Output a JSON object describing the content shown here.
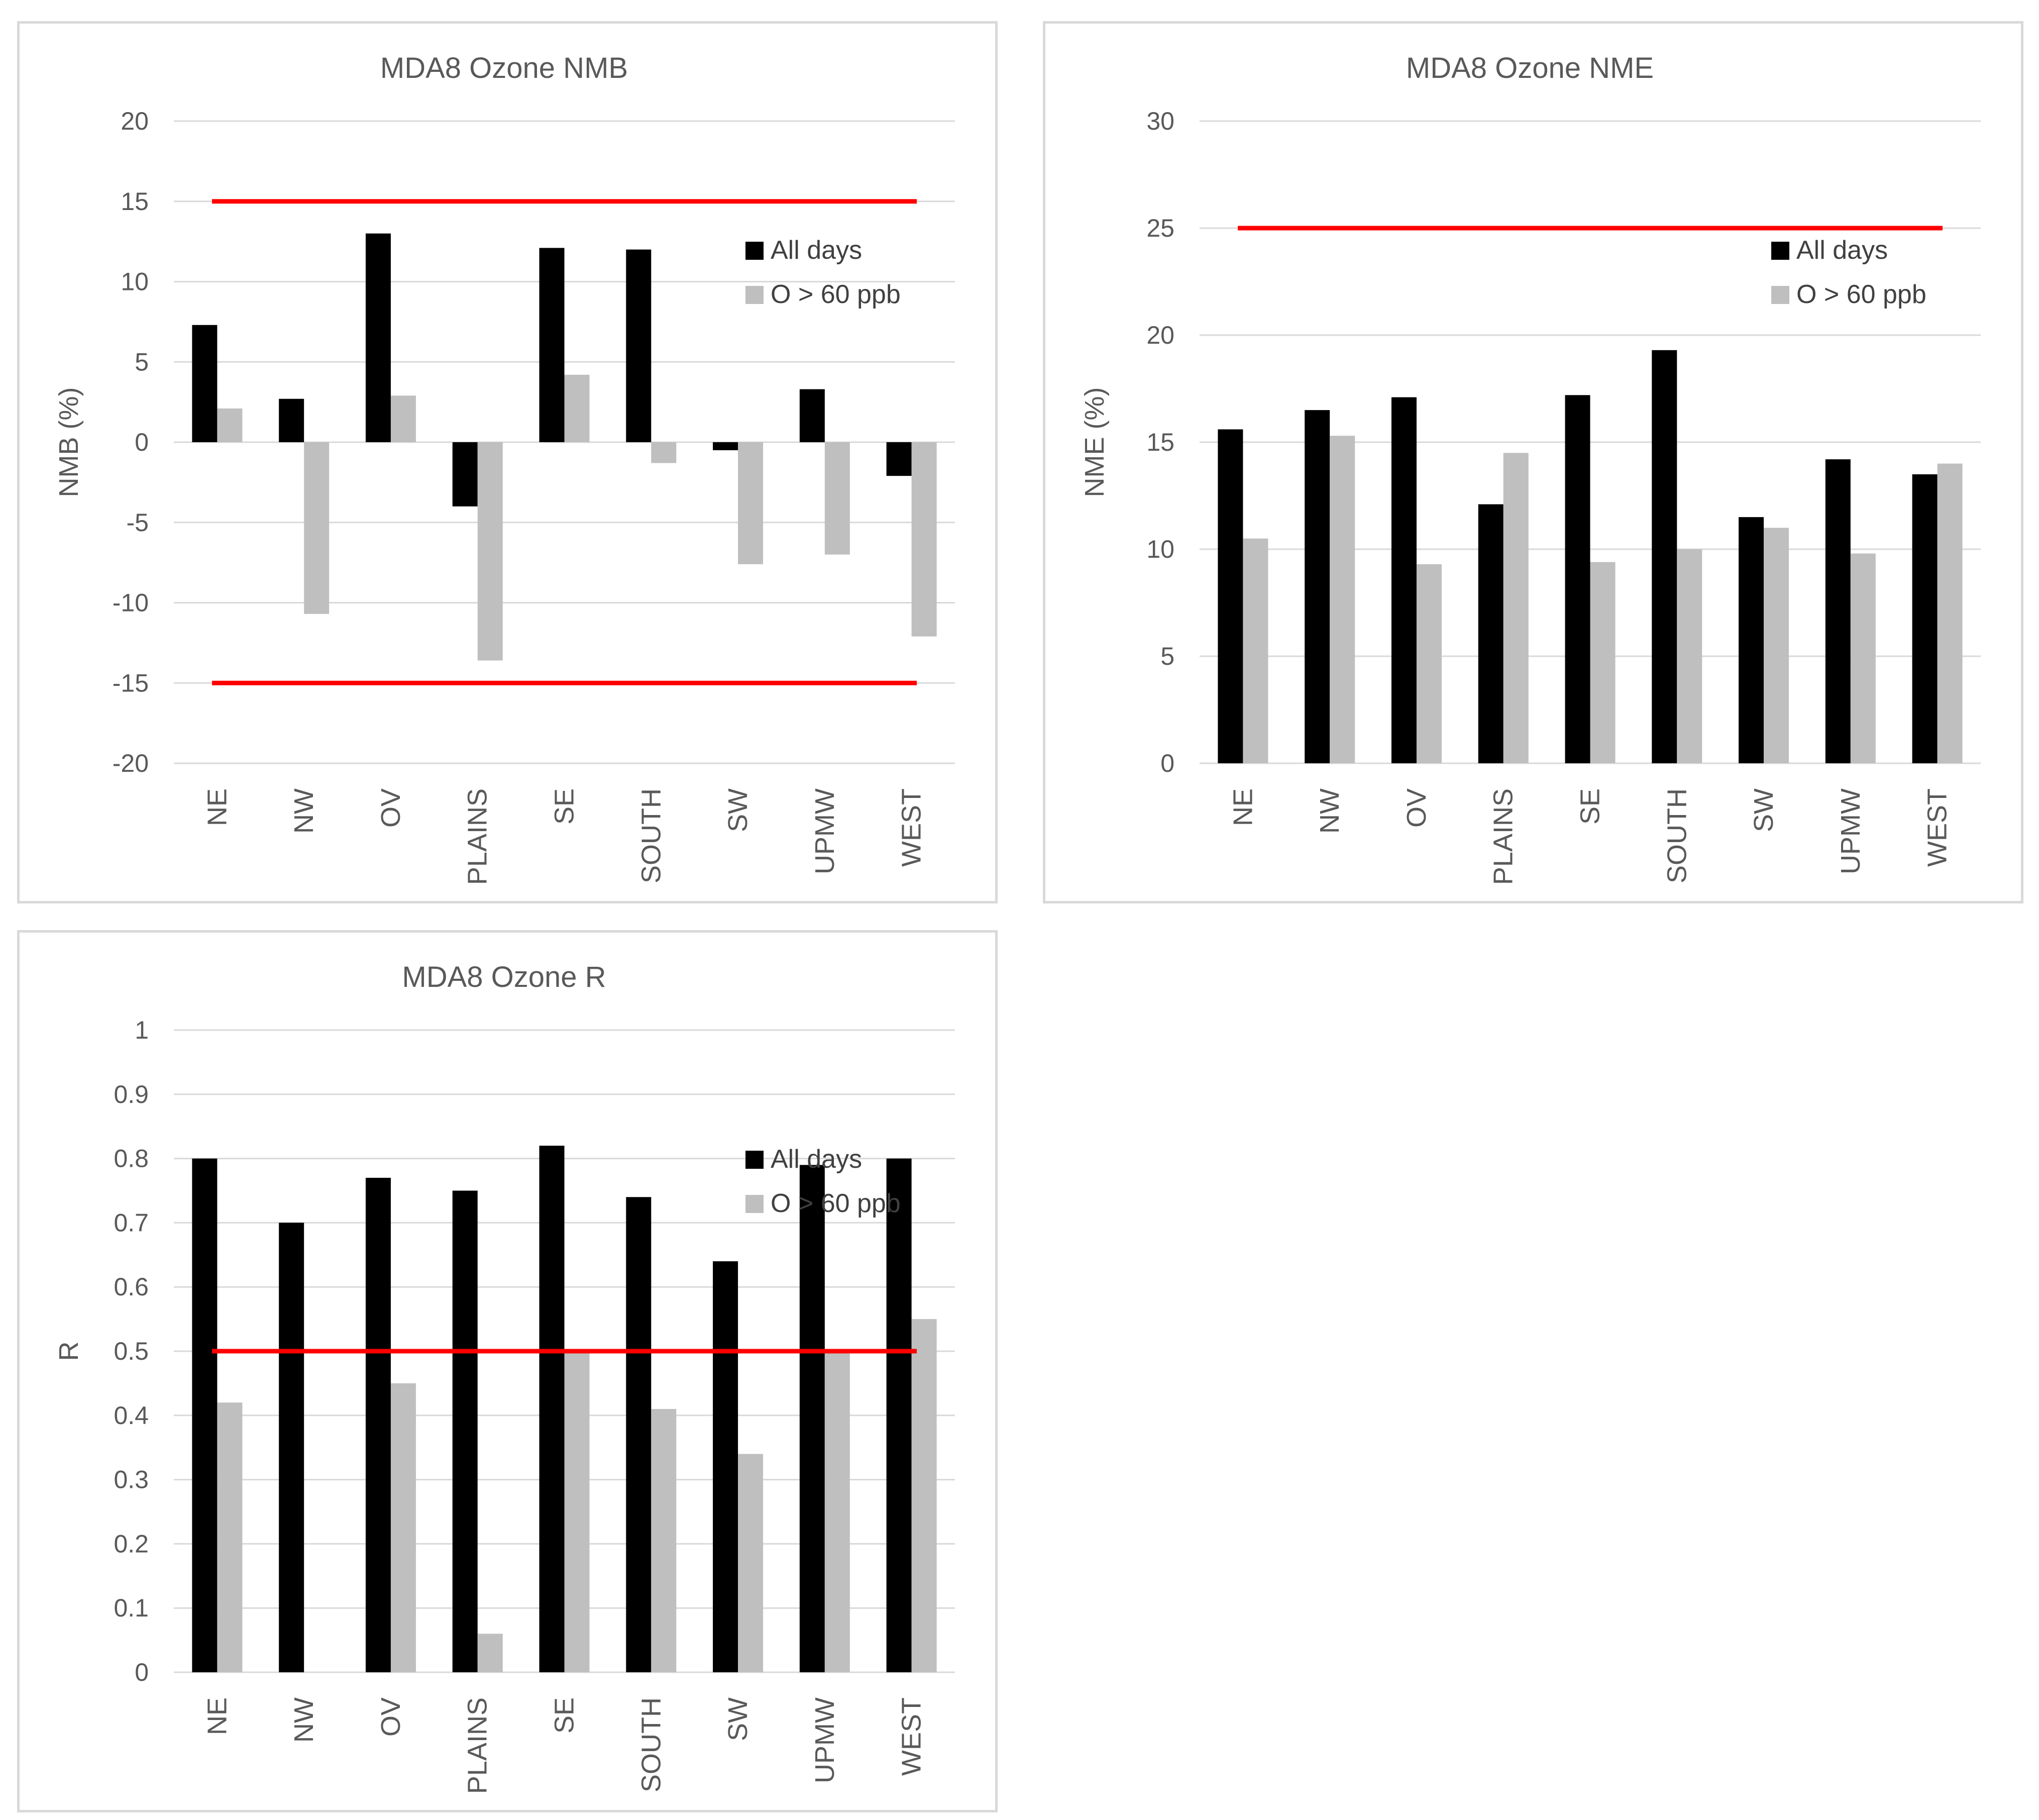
{
  "colors": {
    "all_days": "#000000",
    "o60": "#bfbfbf",
    "threshold": "#ff0000"
  },
  "chart_data": [
    {
      "type": "bar",
      "title": "MDA8 Ozone NMB",
      "xlabel": "",
      "ylabel": "NMB (%)",
      "ylim": [
        -20,
        20
      ],
      "yticks": [
        20,
        15,
        10,
        5,
        0,
        -5,
        -10,
        -15,
        -20
      ],
      "categories": [
        "NE",
        "NW",
        "OV",
        "PLAINS",
        "SE",
        "SOUTH",
        "SW",
        "UPMW",
        "WEST"
      ],
      "series": [
        {
          "name": "All days",
          "values": [
            7.3,
            2.7,
            13.0,
            -4.0,
            12.1,
            12.0,
            -0.5,
            3.3,
            -2.1
          ]
        },
        {
          "name": "O > 60 ppb",
          "values": [
            2.1,
            -10.7,
            2.9,
            -13.6,
            4.2,
            -1.3,
            -7.6,
            -7.0,
            -12.1
          ]
        }
      ],
      "thresholds": [
        15,
        -15
      ],
      "legend_position": "top-right"
    },
    {
      "type": "bar",
      "title": "MDA8 Ozone NME",
      "xlabel": "",
      "ylabel": "NME (%)",
      "ylim": [
        0,
        30
      ],
      "yticks": [
        30,
        25,
        20,
        15,
        10,
        5,
        0
      ],
      "categories": [
        "NE",
        "NW",
        "OV",
        "PLAINS",
        "SE",
        "SOUTH",
        "SW",
        "UPMW",
        "WEST"
      ],
      "series": [
        {
          "name": "All days",
          "values": [
            15.6,
            16.5,
            17.1,
            12.1,
            17.2,
            19.3,
            11.5,
            14.2,
            13.5
          ]
        },
        {
          "name": "O > 60 ppb",
          "values": [
            10.5,
            15.3,
            9.3,
            14.5,
            9.4,
            10.0,
            11.0,
            9.8,
            14.0
          ]
        }
      ],
      "thresholds": [
        25
      ],
      "legend_position": "top-right"
    },
    {
      "type": "bar",
      "title": "MDA8 Ozone R",
      "xlabel": "",
      "ylabel": "R",
      "ylim": [
        0,
        1
      ],
      "yticks": [
        1,
        0.9,
        0.8,
        0.7,
        0.6,
        0.5,
        0.4,
        0.3,
        0.2,
        0.1,
        0
      ],
      "categories": [
        "NE",
        "NW",
        "OV",
        "PLAINS",
        "SE",
        "SOUTH",
        "SW",
        "UPMW",
        "WEST"
      ],
      "series": [
        {
          "name": "All days",
          "values": [
            0.8,
            0.7,
            0.77,
            0.75,
            0.82,
            0.74,
            0.64,
            0.79,
            0.8
          ]
        },
        {
          "name": "O > 60 ppb",
          "values": [
            0.42,
            0.0,
            0.45,
            0.06,
            0.5,
            0.41,
            0.34,
            0.5,
            0.55
          ]
        }
      ],
      "thresholds": [
        0.5
      ],
      "legend_position": "top-right"
    }
  ]
}
